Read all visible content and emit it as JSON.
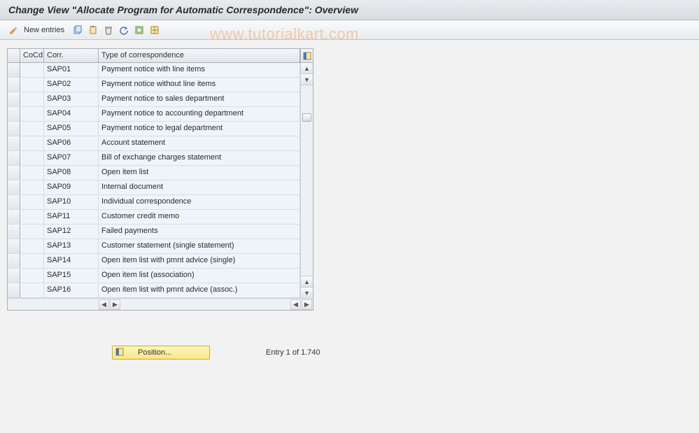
{
  "title": "Change View \"Allocate Program for Automatic Correspondence\": Overview",
  "watermark": "www.tutorialkart.com",
  "toolbar": {
    "new_entries_label": "New entries"
  },
  "colors": {
    "toolbar_bg_top": "#fafbfc",
    "toolbar_bg_bottom": "#e8ecef",
    "cell_bg": "#eef4fa",
    "border": "#a8b0b8",
    "position_btn_top": "#fef6b9",
    "position_btn_bottom": "#f8e88a",
    "watermark": "#f4a96a"
  },
  "table": {
    "columns": {
      "cocd": "CoCd",
      "corr": "Corr.",
      "type": "Type of correspondence"
    },
    "rows": [
      {
        "cocd": "",
        "corr": "SAP01",
        "type": "Payment notice with line items"
      },
      {
        "cocd": "",
        "corr": "SAP02",
        "type": "Payment notice without line items"
      },
      {
        "cocd": "",
        "corr": "SAP03",
        "type": "Payment notice to sales department"
      },
      {
        "cocd": "",
        "corr": "SAP04",
        "type": "Payment notice to accounting department"
      },
      {
        "cocd": "",
        "corr": "SAP05",
        "type": "Payment notice to legal department"
      },
      {
        "cocd": "",
        "corr": "SAP06",
        "type": "Account statement"
      },
      {
        "cocd": "",
        "corr": "SAP07",
        "type": "Bill of exchange charges statement"
      },
      {
        "cocd": "",
        "corr": "SAP08",
        "type": "Open item list"
      },
      {
        "cocd": "",
        "corr": "SAP09",
        "type": "Internal document"
      },
      {
        "cocd": "",
        "corr": "SAP10",
        "type": "Individual correspondence"
      },
      {
        "cocd": "",
        "corr": "SAP11",
        "type": "Customer credit memo"
      },
      {
        "cocd": "",
        "corr": "SAP12",
        "type": "Failed payments"
      },
      {
        "cocd": "",
        "corr": "SAP13",
        "type": "Customer statement (single statement)"
      },
      {
        "cocd": "",
        "corr": "SAP14",
        "type": "Open item list with pmnt advice (single)"
      },
      {
        "cocd": "",
        "corr": "SAP15",
        "type": "Open item list (association)"
      },
      {
        "cocd": "",
        "corr": "SAP16",
        "type": "Open item list with pmnt advice (assoc.)"
      }
    ]
  },
  "footer": {
    "position_label": "Position...",
    "entry_text": "Entry 1 of 1.740"
  }
}
